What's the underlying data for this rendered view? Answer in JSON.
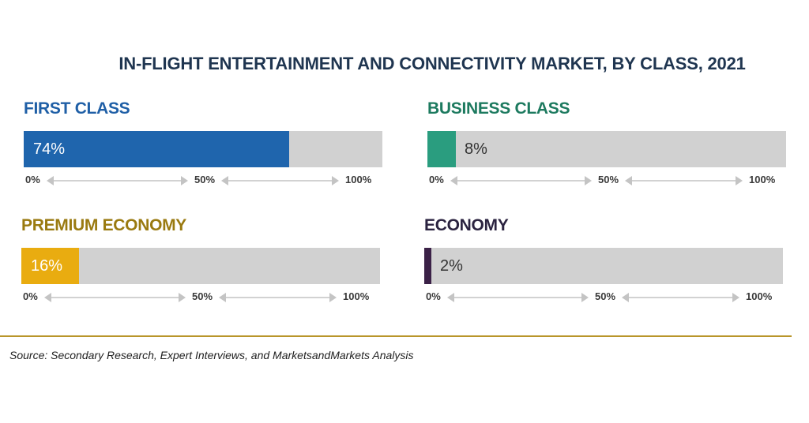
{
  "chart_data": {
    "type": "bar",
    "title": "IN-FLIGHT ENTERTAINMENT AND CONNECTIVITY MARKET, BY CLASS, 2021",
    "categories": [
      "FIRST CLASS",
      "BUSINESS CLASS",
      "PREMIUM ECONOMY",
      "ECONOMY"
    ],
    "values": [
      74,
      8,
      16,
      2
    ],
    "value_labels": [
      "74%",
      "8%",
      "16%",
      "2%"
    ],
    "scale_ticks": [
      "0%",
      "50%",
      "100%"
    ],
    "xlim": [
      0,
      100
    ],
    "colors": [
      "#1f65ad",
      "#2a9d7f",
      "#e9ac10",
      "#3b2147"
    ],
    "label_colors": [
      "#1f5fa6",
      "#1d7a5f",
      "#9a7a10",
      "#2b2340"
    ]
  },
  "source": "Source: Secondary Research, Expert Interviews, and MarketsandMarkets Analysis"
}
